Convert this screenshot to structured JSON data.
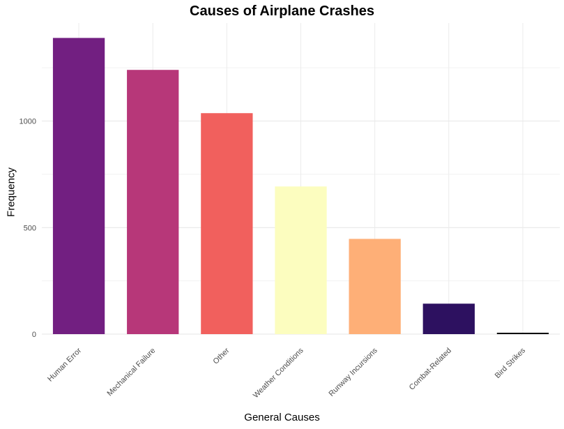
{
  "chart_data": {
    "type": "bar",
    "title": "Causes of Airplane Crashes",
    "xlabel": "General Causes",
    "ylabel": "Frequency",
    "categories": [
      "Human Error",
      "Mechanical Failure",
      "Other",
      "Weather Conditions",
      "Runway Incursions",
      "Combat-Related",
      "Bird Strikes"
    ],
    "values": [
      1390,
      1240,
      1037,
      693,
      447,
      143,
      5
    ],
    "colors": [
      "#721F81",
      "#B73779",
      "#F1605D",
      "#FCFDBF",
      "#FEAF77",
      "#2D1160",
      "#000004"
    ],
    "y_ticks": [
      0,
      500,
      1000
    ],
    "ylim": [
      0,
      1460
    ],
    "grid": true,
    "legend": "none"
  }
}
